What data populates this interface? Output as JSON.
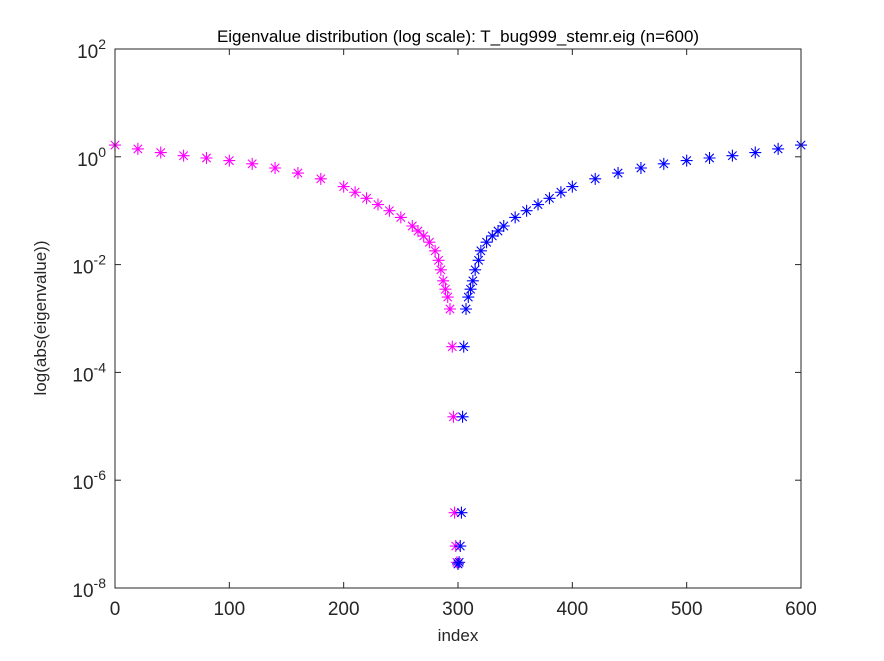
{
  "chart_data": {
    "type": "scatter",
    "title": "Eigenvalue distribution (log scale): T_bug999_stemr.eig (n=600)",
    "xlabel": "index",
    "ylabel": "log(abs(eigenvalue))",
    "x_range": [
      0,
      600
    ],
    "y_range": [
      1e-08,
      100
    ],
    "y_scale": "log",
    "x_ticks": [
      {
        "value": 0,
        "label": "0"
      },
      {
        "value": 100,
        "label": "100"
      },
      {
        "value": 200,
        "label": "200"
      },
      {
        "value": 300,
        "label": "300"
      },
      {
        "value": 400,
        "label": "400"
      },
      {
        "value": 500,
        "label": "500"
      },
      {
        "value": 600,
        "label": "600"
      }
    ],
    "y_ticks": [
      {
        "value": 1e-08,
        "base": "10",
        "exp": "-8"
      },
      {
        "value": 1e-06,
        "base": "10",
        "exp": "-6"
      },
      {
        "value": 0.0001,
        "base": "10",
        "exp": "-4"
      },
      {
        "value": 0.01,
        "base": "10",
        "exp": "-2"
      },
      {
        "value": 1,
        "base": "10",
        "exp": "0"
      },
      {
        "value": 100,
        "base": "10",
        "exp": "2"
      }
    ],
    "grid": false,
    "marker": "asterisk",
    "series": [
      {
        "color": "#ff00ff",
        "x": [
          0,
          20,
          40,
          60,
          80,
          100,
          120,
          140,
          160,
          180,
          200,
          210,
          220,
          230,
          240,
          250,
          260,
          265,
          270,
          275,
          280,
          283,
          285,
          287,
          289,
          291,
          293,
          295,
          296,
          297,
          298,
          299,
          300
        ],
        "y": [
          1.65,
          1.4,
          1.2,
          1.05,
          0.95,
          0.85,
          0.74,
          0.62,
          0.5,
          0.39,
          0.28,
          0.22,
          0.17,
          0.13,
          0.1,
          0.075,
          0.052,
          0.042,
          0.034,
          0.026,
          0.018,
          0.012,
          0.008,
          0.005,
          0.0035,
          0.0025,
          0.0015,
          0.0003,
          1.5e-05,
          2.5e-07,
          6e-08,
          3e-08,
          2.8e-08
        ]
      },
      {
        "color": "#0000ff",
        "x": [
          300,
          301,
          302,
          303,
          304,
          305,
          307,
          309,
          311,
          313,
          315,
          318,
          320,
          325,
          330,
          335,
          340,
          350,
          360,
          370,
          380,
          390,
          400,
          420,
          440,
          460,
          480,
          500,
          520,
          540,
          560,
          580,
          600
        ],
        "y": [
          2.8e-08,
          3e-08,
          6e-08,
          2.5e-07,
          1.5e-05,
          0.0003,
          0.0015,
          0.0025,
          0.0035,
          0.005,
          0.008,
          0.012,
          0.018,
          0.026,
          0.034,
          0.042,
          0.052,
          0.075,
          0.1,
          0.13,
          0.17,
          0.22,
          0.28,
          0.39,
          0.5,
          0.62,
          0.74,
          0.85,
          0.95,
          1.05,
          1.2,
          1.4,
          1.65
        ]
      }
    ]
  }
}
